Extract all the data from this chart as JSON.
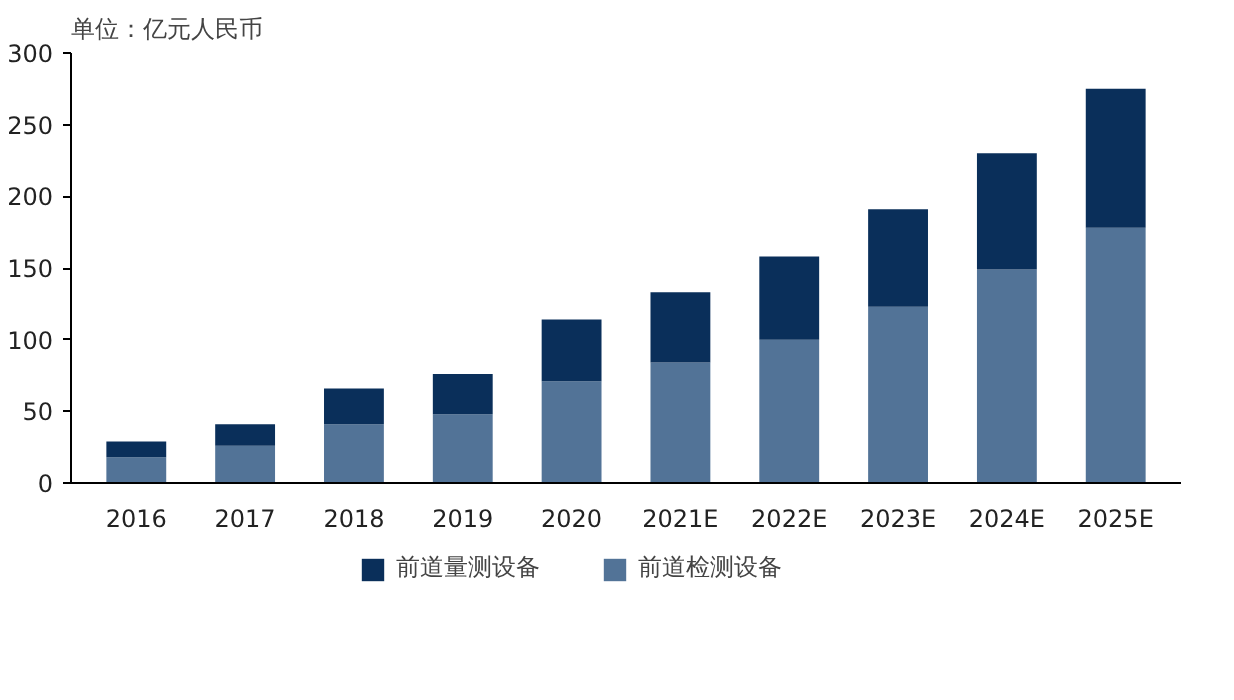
{
  "chart_data": {
    "type": "bar",
    "title": "单位：亿元人民币",
    "stacked": true,
    "categories": [
      "2016",
      "2017",
      "2018",
      "2019",
      "2020",
      "2021E",
      "2022E",
      "2023E",
      "2024E",
      "2025E"
    ],
    "series": [
      {
        "name": "前道检测设备",
        "color": "#527397",
        "values": [
          18,
          26,
          41,
          48,
          71,
          84,
          100,
          123,
          149,
          178
        ]
      },
      {
        "name": "前道量测设备",
        "color": "#0a2f5a",
        "values": [
          11,
          15,
          25,
          28,
          43,
          49,
          58,
          68,
          81,
          97
        ]
      }
    ],
    "ylim": [
      0,
      300
    ],
    "yticks": [
      0,
      50,
      100,
      150,
      200,
      250,
      300
    ],
    "grid": false,
    "legend": "bottom"
  }
}
